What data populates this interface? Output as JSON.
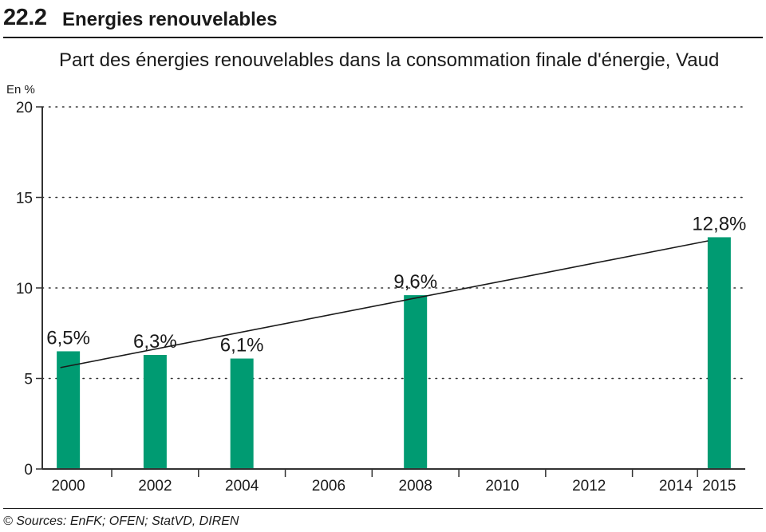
{
  "header": {
    "section_number": "22.2",
    "section_title": "Energies renouvelables"
  },
  "footer": {
    "source": "© Sources: EnFK; OFEN; StatVD, DIREN"
  },
  "colors": {
    "bar": "#009b72",
    "trend": "#1a1a1a",
    "grid": "#333333"
  },
  "chart_data": {
    "type": "bar",
    "title": "Part des énergies renouvelables dans la consommation finale d'énergie, Vaud",
    "ylabel": "En %",
    "xlabel": "",
    "ylim": [
      0,
      20
    ],
    "yticks": [
      0,
      5,
      10,
      15,
      20
    ],
    "xlim": [
      1999.4,
      2015.6
    ],
    "xticks": [
      2000,
      2002,
      2004,
      2006,
      2008,
      2010,
      2012,
      2014,
      2015
    ],
    "grid": "horizontal-dotted",
    "series": [
      {
        "x": [
          2000,
          2002,
          2004,
          2008,
          2015
        ],
        "values": [
          6.5,
          6.3,
          6.1,
          9.6,
          12.8
        ],
        "labels": [
          "6,5%",
          "6,3%",
          "6,1%",
          "9,6%",
          "12,8%"
        ]
      }
    ],
    "trendline": {
      "x": [
        2000,
        2015
      ],
      "y": [
        5.6,
        12.6
      ]
    }
  }
}
